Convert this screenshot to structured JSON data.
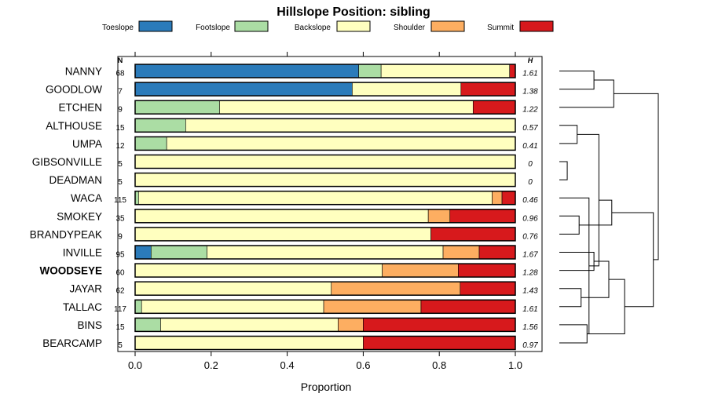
{
  "chart_data": {
    "type": "bar",
    "stacked": true,
    "orientation": "horizontal",
    "title": "Hillslope Position: sibling",
    "xlabel": "Proportion",
    "xlim": [
      0,
      1
    ],
    "x_ticks": [
      "0.0",
      "0.2",
      "0.4",
      "0.6",
      "0.8",
      "1.0"
    ],
    "n_header": "N",
    "h_header": "H",
    "legend": [
      {
        "name": "Toeslope",
        "color": "#2b7bba"
      },
      {
        "name": "Footslope",
        "color": "#abdda4"
      },
      {
        "name": "Backslope",
        "color": "#ffffbf"
      },
      {
        "name": "Shoulder",
        "color": "#fdae61"
      },
      {
        "name": "Summit",
        "color": "#d7191c"
      }
    ],
    "rows": [
      {
        "name": "NANNY",
        "n": "68",
        "h": "1.61",
        "bold": false,
        "values": [
          0.588,
          0.059,
          0.338,
          0.0,
          0.015
        ]
      },
      {
        "name": "GOODLOW",
        "n": "7",
        "h": "1.38",
        "bold": false,
        "values": [
          0.571,
          0.0,
          0.286,
          0.0,
          0.143
        ]
      },
      {
        "name": "ETCHEN",
        "n": "9",
        "h": "1.22",
        "bold": false,
        "values": [
          0.0,
          0.222,
          0.667,
          0.0,
          0.111
        ]
      },
      {
        "name": "ALTHOUSE",
        "n": "15",
        "h": "0.57",
        "bold": false,
        "values": [
          0.0,
          0.133,
          0.867,
          0.0,
          0.0
        ]
      },
      {
        "name": "UMPA",
        "n": "12",
        "h": "0.41",
        "bold": false,
        "values": [
          0.0,
          0.083,
          0.917,
          0.0,
          0.0
        ]
      },
      {
        "name": "GIBSONVILLE",
        "n": "5",
        "h": "0",
        "bold": false,
        "values": [
          0.0,
          0.0,
          1.0,
          0.0,
          0.0
        ]
      },
      {
        "name": "DEADMAN",
        "n": "5",
        "h": "0",
        "bold": false,
        "values": [
          0.0,
          0.0,
          1.0,
          0.0,
          0.0
        ]
      },
      {
        "name": "WACA",
        "n": "115",
        "h": "0.46",
        "bold": false,
        "values": [
          0.0,
          0.009,
          0.93,
          0.026,
          0.035
        ]
      },
      {
        "name": "SMOKEY",
        "n": "35",
        "h": "0.96",
        "bold": false,
        "values": [
          0.0,
          0.0,
          0.771,
          0.057,
          0.172
        ]
      },
      {
        "name": "BRANDYPEAK",
        "n": "9",
        "h": "0.76",
        "bold": false,
        "values": [
          0.0,
          0.0,
          0.778,
          0.0,
          0.222
        ]
      },
      {
        "name": "INVILLE",
        "n": "95",
        "h": "1.67",
        "bold": false,
        "values": [
          0.042,
          0.147,
          0.621,
          0.095,
          0.095
        ]
      },
      {
        "name": "WOODSEYE",
        "n": "60",
        "h": "1.28",
        "bold": true,
        "values": [
          0.0,
          0.0,
          0.65,
          0.2,
          0.15
        ]
      },
      {
        "name": "JAYAR",
        "n": "62",
        "h": "1.43",
        "bold": false,
        "values": [
          0.0,
          0.0,
          0.516,
          0.339,
          0.145
        ]
      },
      {
        "name": "TALLAC",
        "n": "117",
        "h": "1.61",
        "bold": false,
        "values": [
          0.0,
          0.017,
          0.479,
          0.256,
          0.248
        ]
      },
      {
        "name": "BINS",
        "n": "15",
        "h": "1.56",
        "bold": false,
        "values": [
          0.0,
          0.067,
          0.467,
          0.066,
          0.4
        ]
      },
      {
        "name": "BEARCAMP",
        "n": "5",
        "h": "0.97",
        "bold": false,
        "values": [
          0.0,
          0.0,
          0.6,
          0.0,
          0.4
        ]
      }
    ],
    "dendrogram": {
      "merges": [
        [
          5,
          6,
          0.08
        ],
        [
          3,
          4,
          0.18
        ],
        [
          14,
          15,
          0.28
        ],
        [
          8,
          9,
          0.2
        ],
        [
          12,
          13,
          0.22
        ],
        [
          -3,
          7,
          0.3
        ],
        [
          0,
          1,
          0.35
        ],
        [
          10,
          11,
          0.35
        ],
        [
          -2,
          -6,
          0.4
        ],
        [
          -7,
          2,
          0.55
        ],
        [
          -8,
          -5,
          0.5
        ],
        [
          -11,
          -3,
          0.66
        ],
        [
          -9,
          -4,
          0.53
        ],
        [
          -13,
          -12,
          0.95
        ],
        [
          -10,
          -14,
          1.0
        ]
      ]
    }
  }
}
